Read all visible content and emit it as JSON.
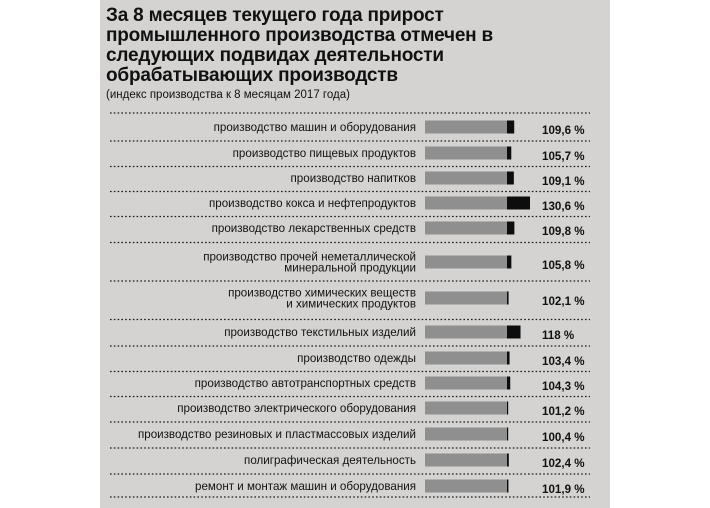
{
  "chart_data": {
    "type": "bar",
    "title": "За 8 месяцев текущего года прирост промышленного производства отмечен в следующих подвидах деятельности обрабатывающих производств",
    "subtitle": "(индекс производства к 8 месяцам 2017 года)",
    "categories": [
      [
        "производство машин и оборудования"
      ],
      [
        "производство пищевых продуктов"
      ],
      [
        "производство напитков"
      ],
      [
        "производство кокса и нефтепродуктов"
      ],
      [
        "производство лекарственных средств"
      ],
      [
        "производство прочей неметаллической",
        "минеральной продукции"
      ],
      [
        "производство химических веществ",
        "и химических продуктов"
      ],
      [
        "производство текстильных изделий"
      ],
      [
        "производство одежды"
      ],
      [
        "производство автотранспортных средств"
      ],
      [
        "производство электрического оборудования"
      ],
      [
        "производство резиновых и пластмассовых изделий"
      ],
      [
        "полиграфическая деятельность"
      ],
      [
        "ремонт и монтаж машин и оборудования"
      ]
    ],
    "values": [
      109.6,
      105.7,
      109.1,
      130.6,
      109.8,
      105.8,
      102.1,
      118,
      103.4,
      104.3,
      101.2,
      100.4,
      102.4,
      101.9
    ],
    "value_labels": [
      "109,6 %",
      "105,7 %",
      "109,1 %",
      "130,6 %",
      "109,8 %",
      "105,8 %",
      "102,1 %",
      "118 %",
      "103,4 %",
      "104,3 %",
      "101,2 %",
      "100,4 %",
      "102,4 %",
      "101,9 %"
    ],
    "baseline": 100,
    "xlim": [
      0,
      130.6
    ],
    "colors": {
      "base_bar": "#8f8f8f",
      "growth_bar": "#0d0d0d",
      "background": "#d4d3d1",
      "separator": "#1a1a1a"
    }
  }
}
